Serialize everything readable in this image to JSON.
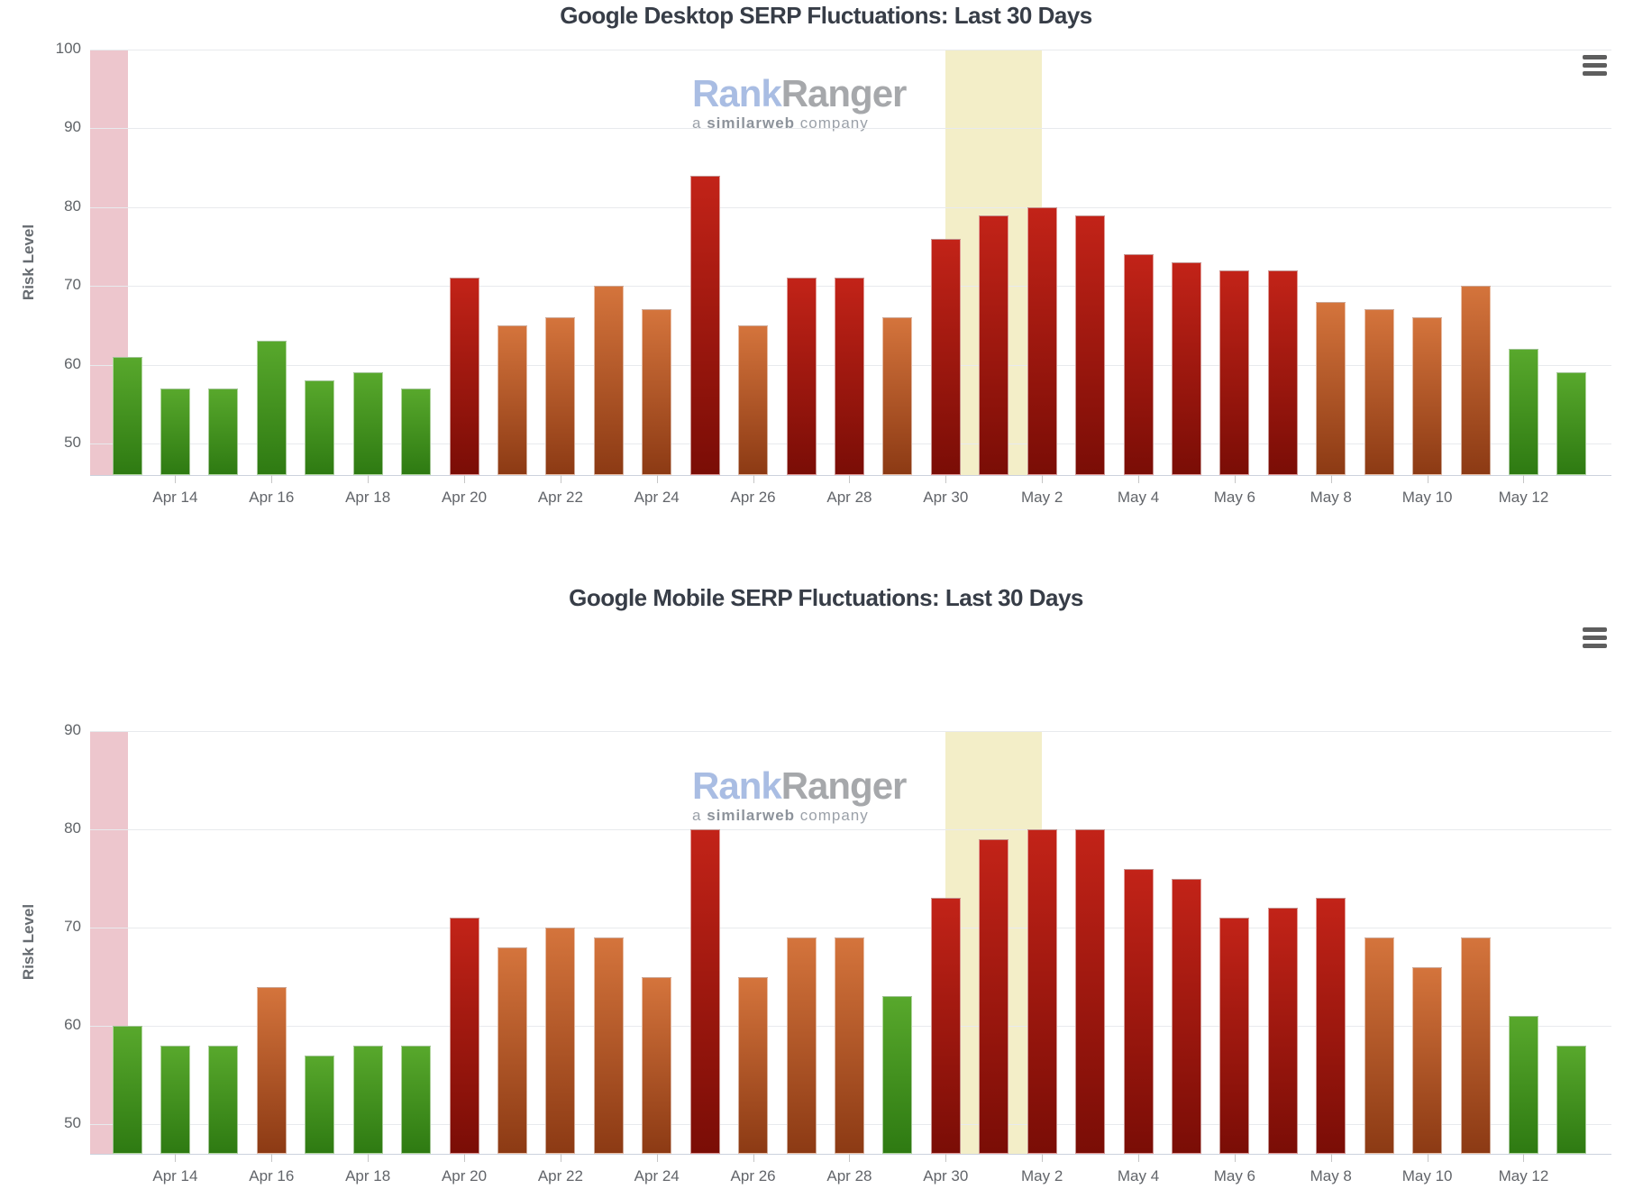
{
  "watermark": {
    "brand_blue": "Rank",
    "brand_gray": "Ranger",
    "tagline_prefix": "a ",
    "tagline_bold": "similarweb",
    "tagline_suffix": " company",
    "brand_blue_color": "#a9bde3",
    "brand_gray_color": "#a6a8ab"
  },
  "style": {
    "palette": {
      "green_top": "#58a82c",
      "green_bottom": "#2e7a12",
      "orange_top": "#d4743c",
      "orange_bottom": "#8c3a14",
      "red_top": "#c22318",
      "red_bottom": "#7a0d06",
      "band_recent_pink": "#edc6cd",
      "band_highlight_yellow": "#f3eec8",
      "title_color": "#373d47",
      "axis_label_color": "#62656a"
    },
    "color_thresholds": {
      "green_max": 63,
      "orange_max": 70,
      "red_min": 71
    }
  },
  "chart_data": [
    {
      "type": "bar",
      "title": "Google Desktop SERP Fluctuations: Last 30 Days",
      "xlabel": "",
      "ylabel": "Risk Level",
      "ylim": [
        46,
        100
      ],
      "y_ticks": [
        100,
        90,
        80,
        70,
        60,
        50
      ],
      "grid": "on",
      "categories": [
        "Apr 13",
        "Apr 14",
        "Apr 15",
        "Apr 16",
        "Apr 17",
        "Apr 18",
        "Apr 19",
        "Apr 20",
        "Apr 21",
        "Apr 22",
        "Apr 23",
        "Apr 24",
        "Apr 25",
        "Apr 26",
        "Apr 27",
        "Apr 28",
        "Apr 29",
        "Apr 30",
        "May 1",
        "May 2",
        "May 3",
        "May 4",
        "May 5",
        "May 6",
        "May 7",
        "May 8",
        "May 9",
        "May 10",
        "May 11",
        "May 12",
        "May 13"
      ],
      "values": [
        61,
        57,
        57,
        63,
        58,
        59,
        57,
        71,
        65,
        66,
        70,
        67,
        84,
        65,
        71,
        71,
        66,
        76,
        79,
        80,
        79,
        74,
        73,
        72,
        72,
        68,
        67,
        66,
        70,
        62,
        59
      ],
      "x_tick_labels": [
        "Apr 14",
        "Apr 16",
        "Apr 18",
        "Apr 20",
        "Apr 22",
        "Apr 24",
        "Apr 26",
        "Apr 28",
        "Apr 30",
        "May 2",
        "May 4",
        "May 6",
        "May 8",
        "May 10",
        "May 12"
      ],
      "plot_bands": {
        "recent_pink": {
          "position": "first-slot",
          "color": "#edc6cd"
        },
        "highlight_yellow": {
          "from_category": "Apr 30",
          "to_category": "May 2",
          "color": "#f3eec8"
        }
      }
    },
    {
      "type": "bar",
      "title": "Google Mobile SERP Fluctuations: Last 30 Days",
      "xlabel": "",
      "ylabel": "Risk Level",
      "ylim": [
        47,
        90
      ],
      "y_ticks": [
        90,
        80,
        70,
        60,
        50
      ],
      "grid": "on",
      "categories": [
        "Apr 13",
        "Apr 14",
        "Apr 15",
        "Apr 16",
        "Apr 17",
        "Apr 18",
        "Apr 19",
        "Apr 20",
        "Apr 21",
        "Apr 22",
        "Apr 23",
        "Apr 24",
        "Apr 25",
        "Apr 26",
        "Apr 27",
        "Apr 28",
        "Apr 29",
        "Apr 30",
        "May 1",
        "May 2",
        "May 3",
        "May 4",
        "May 5",
        "May 6",
        "May 7",
        "May 8",
        "May 9",
        "May 10",
        "May 11",
        "May 12",
        "May 13"
      ],
      "values": [
        60,
        58,
        58,
        64,
        57,
        58,
        58,
        71,
        68,
        70,
        69,
        65,
        80,
        65,
        69,
        69,
        63,
        73,
        79,
        80,
        80,
        76,
        75,
        71,
        72,
        73,
        69,
        66,
        69,
        61,
        58
      ],
      "x_tick_labels": [
        "Apr 14",
        "Apr 16",
        "Apr 18",
        "Apr 20",
        "Apr 22",
        "Apr 24",
        "Apr 26",
        "Apr 28",
        "Apr 30",
        "May 2",
        "May 4",
        "May 6",
        "May 8",
        "May 10",
        "May 12"
      ],
      "plot_bands": {
        "recent_pink": {
          "position": "first-slot",
          "color": "#edc6cd"
        },
        "highlight_yellow": {
          "from_category": "Apr 30",
          "to_category": "May 2",
          "color": "#f3eec8"
        }
      }
    }
  ]
}
